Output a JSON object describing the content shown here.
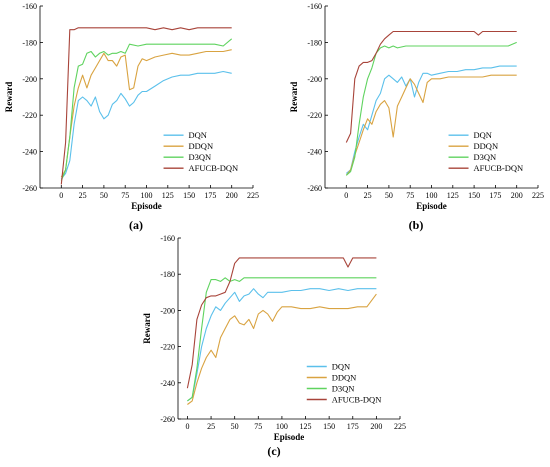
{
  "figure": {
    "panel_labels": [
      "(a)",
      "(b)",
      "(c)"
    ]
  },
  "chart_data": [
    {
      "type": "line",
      "panel": "(a)",
      "xlabel": "Episode",
      "ylabel": "Reward",
      "xlim": [
        -25,
        225
      ],
      "ylim": [
        -260,
        -160
      ],
      "xticks": [
        0,
        25,
        50,
        75,
        100,
        125,
        150,
        175,
        200,
        225
      ],
      "yticks": [
        -160,
        -180,
        -200,
        -220,
        -240,
        -260
      ],
      "legend_position": "lower-right",
      "series": [
        {
          "name": "DQN",
          "color": "#5bc0eb",
          "x": [
            0,
            5,
            10,
            15,
            20,
            25,
            30,
            35,
            40,
            45,
            50,
            55,
            60,
            65,
            70,
            75,
            80,
            85,
            90,
            95,
            100,
            110,
            120,
            130,
            140,
            150,
            160,
            170,
            180,
            190,
            200
          ],
          "y": [
            -255,
            -252,
            -245,
            -225,
            -212,
            -210,
            -212,
            -215,
            -210,
            -218,
            -222,
            -220,
            -214,
            -212,
            -208,
            -211,
            -215,
            -213,
            -209,
            -207,
            -207,
            -204,
            -201,
            -199,
            -198,
            -198,
            -197,
            -197,
            -197,
            -196,
            -197
          ]
        },
        {
          "name": "DDQN",
          "color": "#d9a341",
          "x": [
            0,
            5,
            10,
            15,
            20,
            25,
            30,
            35,
            40,
            45,
            50,
            55,
            60,
            65,
            70,
            75,
            80,
            85,
            90,
            95,
            100,
            110,
            120,
            130,
            140,
            150,
            160,
            170,
            180,
            190,
            200
          ],
          "y": [
            -254,
            -250,
            -232,
            -215,
            -205,
            -198,
            -205,
            -198,
            -194,
            -190,
            -186,
            -190,
            -190,
            -193,
            -188,
            -187,
            -206,
            -205,
            -193,
            -189,
            -190,
            -188,
            -187,
            -186,
            -187,
            -187,
            -186,
            -185,
            -185,
            -185,
            -184
          ]
        },
        {
          "name": "D3QN",
          "color": "#5fd35f",
          "x": [
            0,
            5,
            10,
            15,
            20,
            25,
            30,
            35,
            40,
            45,
            50,
            55,
            60,
            65,
            70,
            75,
            80,
            90,
            100,
            110,
            120,
            130,
            140,
            150,
            160,
            170,
            180,
            190,
            200
          ],
          "y": [
            -256,
            -250,
            -232,
            -205,
            -193,
            -192,
            -186,
            -185,
            -188,
            -186,
            -185,
            -187,
            -186,
            -186,
            -185,
            -186,
            -181,
            -182,
            -181,
            -181,
            -181,
            -181,
            -181,
            -181,
            -181,
            -181,
            -181,
            -182,
            -178
          ]
        },
        {
          "name": "AFUCB-DQN",
          "color": "#a8443a",
          "x": [
            0,
            5,
            10,
            15,
            20,
            30,
            40,
            50,
            60,
            70,
            80,
            90,
            100,
            110,
            120,
            130,
            140,
            150,
            160,
            170,
            180,
            190,
            200
          ],
          "y": [
            -258,
            -235,
            -173,
            -173,
            -172,
            -172,
            -172,
            -172,
            -172,
            -172,
            -172,
            -172,
            -172,
            -173,
            -172,
            -173,
            -172,
            -173,
            -172,
            -172,
            -172,
            -172,
            -172
          ]
        }
      ]
    },
    {
      "type": "line",
      "panel": "(b)",
      "xlabel": "Episode",
      "ylabel": "Reward",
      "xlim": [
        -25,
        225
      ],
      "ylim": [
        -260,
        -160
      ],
      "xticks": [
        0,
        25,
        50,
        75,
        100,
        125,
        150,
        175,
        200,
        225
      ],
      "yticks": [
        -160,
        -180,
        -200,
        -220,
        -240,
        -260
      ],
      "legend_position": "lower-right",
      "series": [
        {
          "name": "DQN",
          "color": "#5bc0eb",
          "x": [
            0,
            5,
            10,
            15,
            20,
            25,
            30,
            35,
            40,
            45,
            50,
            55,
            60,
            65,
            70,
            75,
            80,
            85,
            90,
            95,
            100,
            110,
            120,
            130,
            140,
            150,
            160,
            170,
            180,
            190,
            200
          ],
          "y": [
            -252,
            -250,
            -240,
            -232,
            -225,
            -228,
            -220,
            -212,
            -208,
            -200,
            -198,
            -200,
            -202,
            -199,
            -204,
            -200,
            -210,
            -202,
            -197,
            -197,
            -198,
            -197,
            -196,
            -196,
            -195,
            -195,
            -194,
            -194,
            -193,
            -193,
            -193
          ]
        },
        {
          "name": "DDQN",
          "color": "#d9a341",
          "x": [
            0,
            5,
            10,
            15,
            20,
            25,
            30,
            35,
            40,
            45,
            50,
            55,
            60,
            65,
            70,
            75,
            80,
            85,
            90,
            95,
            100,
            110,
            120,
            130,
            140,
            150,
            160,
            170,
            180,
            190,
            200
          ],
          "y": [
            -253,
            -250,
            -242,
            -235,
            -228,
            -222,
            -225,
            -218,
            -214,
            -212,
            -216,
            -232,
            -215,
            -210,
            -205,
            -200,
            -203,
            -208,
            -213,
            -202,
            -200,
            -200,
            -199,
            -199,
            -199,
            -199,
            -199,
            -198,
            -198,
            -198,
            -198
          ]
        },
        {
          "name": "D3QN",
          "color": "#5fd35f",
          "x": [
            0,
            5,
            10,
            15,
            20,
            25,
            30,
            35,
            40,
            45,
            50,
            55,
            60,
            70,
            80,
            90,
            100,
            110,
            120,
            130,
            140,
            150,
            160,
            170,
            180,
            190,
            200
          ],
          "y": [
            -253,
            -251,
            -243,
            -225,
            -210,
            -200,
            -194,
            -186,
            -183,
            -182,
            -183,
            -182,
            -183,
            -182,
            -182,
            -182,
            -182,
            -182,
            -182,
            -182,
            -182,
            -182,
            -182,
            -182,
            -182,
            -182,
            -180
          ]
        },
        {
          "name": "AFUCB-DQN",
          "color": "#a8443a",
          "x": [
            0,
            5,
            10,
            15,
            20,
            25,
            30,
            35,
            40,
            45,
            50,
            55,
            60,
            70,
            80,
            90,
            100,
            110,
            120,
            130,
            140,
            150,
            155,
            160,
            170,
            180,
            190,
            200
          ],
          "y": [
            -235,
            -230,
            -200,
            -193,
            -191,
            -191,
            -190,
            -186,
            -181,
            -178,
            -176,
            -174,
            -174,
            -174,
            -174,
            -174,
            -174,
            -174,
            -174,
            -174,
            -174,
            -174,
            -176,
            -174,
            -174,
            -174,
            -174,
            -174
          ]
        }
      ]
    },
    {
      "type": "line",
      "panel": "(c)",
      "xlabel": "Episode",
      "ylabel": "Reward",
      "xlim": [
        -10,
        225
      ],
      "ylim": [
        -260,
        -160
      ],
      "xticks": [
        0,
        25,
        50,
        75,
        100,
        125,
        150,
        175,
        200,
        225
      ],
      "yticks": [
        -160,
        -180,
        -200,
        -220,
        -240,
        -260
      ],
      "legend_position": "lower-right",
      "series": [
        {
          "name": "DQN",
          "color": "#5bc0eb",
          "x": [
            0,
            5,
            10,
            15,
            20,
            25,
            30,
            35,
            40,
            45,
            50,
            55,
            60,
            65,
            70,
            75,
            80,
            85,
            90,
            95,
            100,
            110,
            120,
            130,
            140,
            150,
            160,
            170,
            180,
            190,
            200
          ],
          "y": [
            -250,
            -248,
            -235,
            -220,
            -210,
            -203,
            -198,
            -200,
            -196,
            -193,
            -190,
            -195,
            -192,
            -191,
            -188,
            -191,
            -193,
            -190,
            -190,
            -190,
            -190,
            -189,
            -189,
            -188,
            -188,
            -189,
            -188,
            -189,
            -188,
            -188,
            -188
          ]
        },
        {
          "name": "DDQN",
          "color": "#d9a341",
          "x": [
            0,
            5,
            10,
            15,
            20,
            25,
            30,
            35,
            40,
            45,
            50,
            55,
            60,
            65,
            70,
            75,
            80,
            85,
            90,
            95,
            100,
            110,
            120,
            130,
            140,
            150,
            160,
            170,
            180,
            190,
            200
          ],
          "y": [
            -252,
            -250,
            -240,
            -232,
            -226,
            -222,
            -226,
            -215,
            -210,
            -205,
            -203,
            -207,
            -208,
            -205,
            -210,
            -202,
            -200,
            -202,
            -206,
            -201,
            -198,
            -198,
            -199,
            -199,
            -198,
            -199,
            -199,
            -199,
            -198,
            -198,
            -191
          ]
        },
        {
          "name": "D3QN",
          "color": "#5fd35f",
          "x": [
            0,
            5,
            10,
            15,
            20,
            25,
            30,
            35,
            40,
            45,
            50,
            55,
            60,
            70,
            80,
            90,
            100,
            110,
            120,
            130,
            140,
            150,
            160,
            170,
            180,
            190,
            200
          ],
          "y": [
            -250,
            -248,
            -232,
            -210,
            -190,
            -183,
            -183,
            -184,
            -182,
            -184,
            -183,
            -184,
            -182,
            -182,
            -182,
            -182,
            -182,
            -182,
            -182,
            -182,
            -182,
            -182,
            -182,
            -182,
            -182,
            -182,
            -182
          ]
        },
        {
          "name": "AFUCB-DQN",
          "color": "#a8443a",
          "x": [
            0,
            5,
            10,
            15,
            20,
            25,
            30,
            35,
            40,
            45,
            50,
            55,
            60,
            70,
            80,
            90,
            100,
            110,
            120,
            130,
            140,
            150,
            160,
            165,
            170,
            175,
            180,
            190,
            200
          ],
          "y": [
            -243,
            -230,
            -205,
            -197,
            -193,
            -192,
            -192,
            -191,
            -190,
            -184,
            -174,
            -171,
            -171,
            -171,
            -171,
            -171,
            -171,
            -171,
            -171,
            -171,
            -171,
            -171,
            -171,
            -171,
            -176,
            -171,
            -171,
            -171,
            -171
          ]
        }
      ]
    }
  ]
}
